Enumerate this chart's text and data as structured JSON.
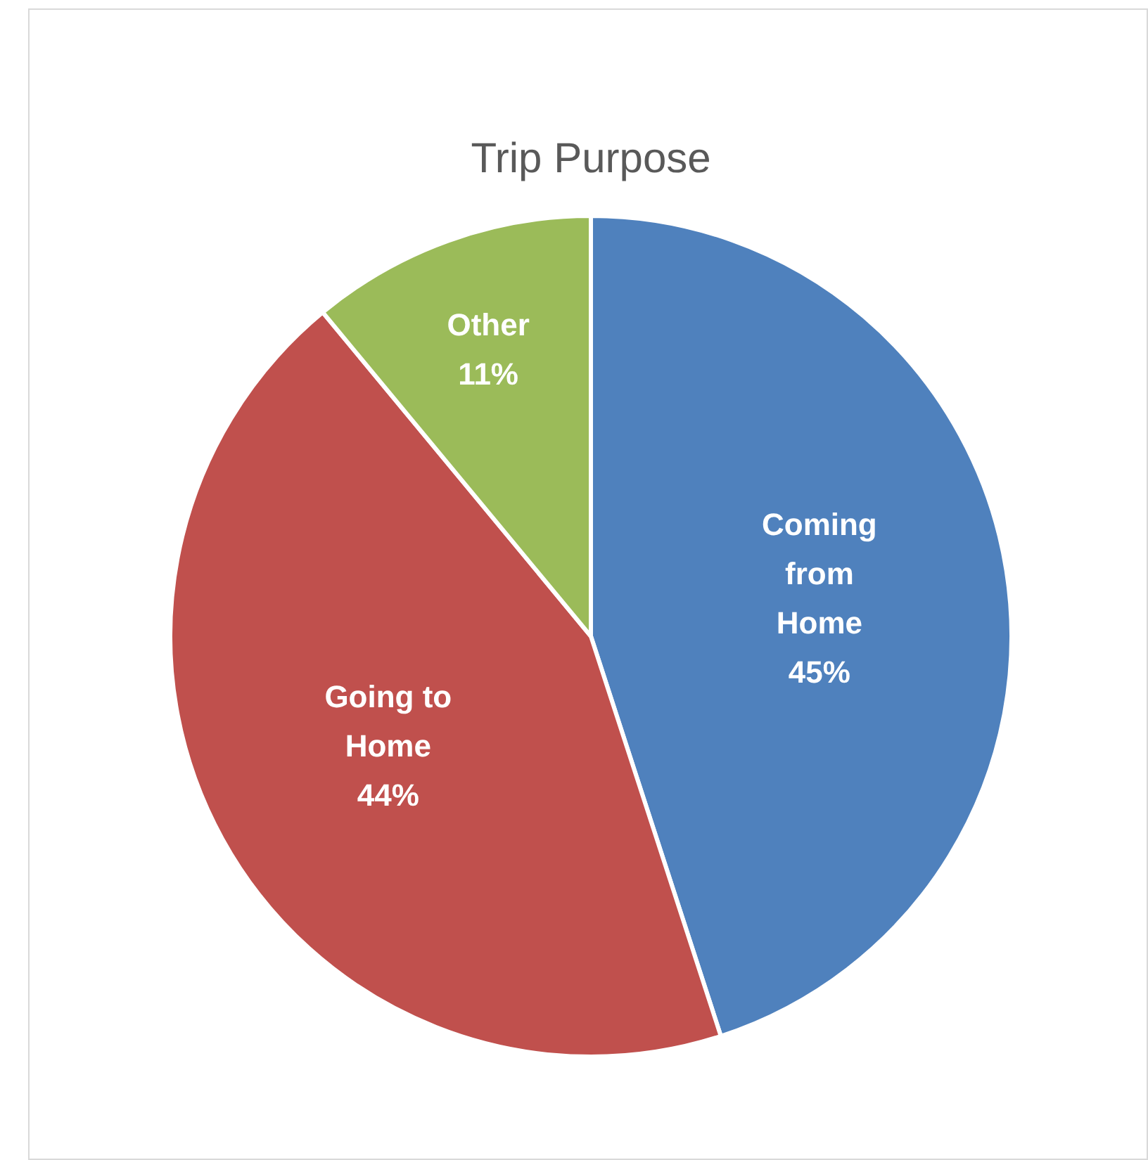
{
  "chart_data": {
    "type": "pie",
    "title": "Trip Purpose",
    "categories": [
      "Coming from Home",
      "Going to Home",
      "Other"
    ],
    "values": [
      45,
      44,
      11
    ],
    "value_labels": [
      "45%",
      "44%",
      "11%"
    ],
    "colors": [
      "#4f81bd",
      "#c0504d",
      "#9bbb59"
    ],
    "legend": false
  }
}
